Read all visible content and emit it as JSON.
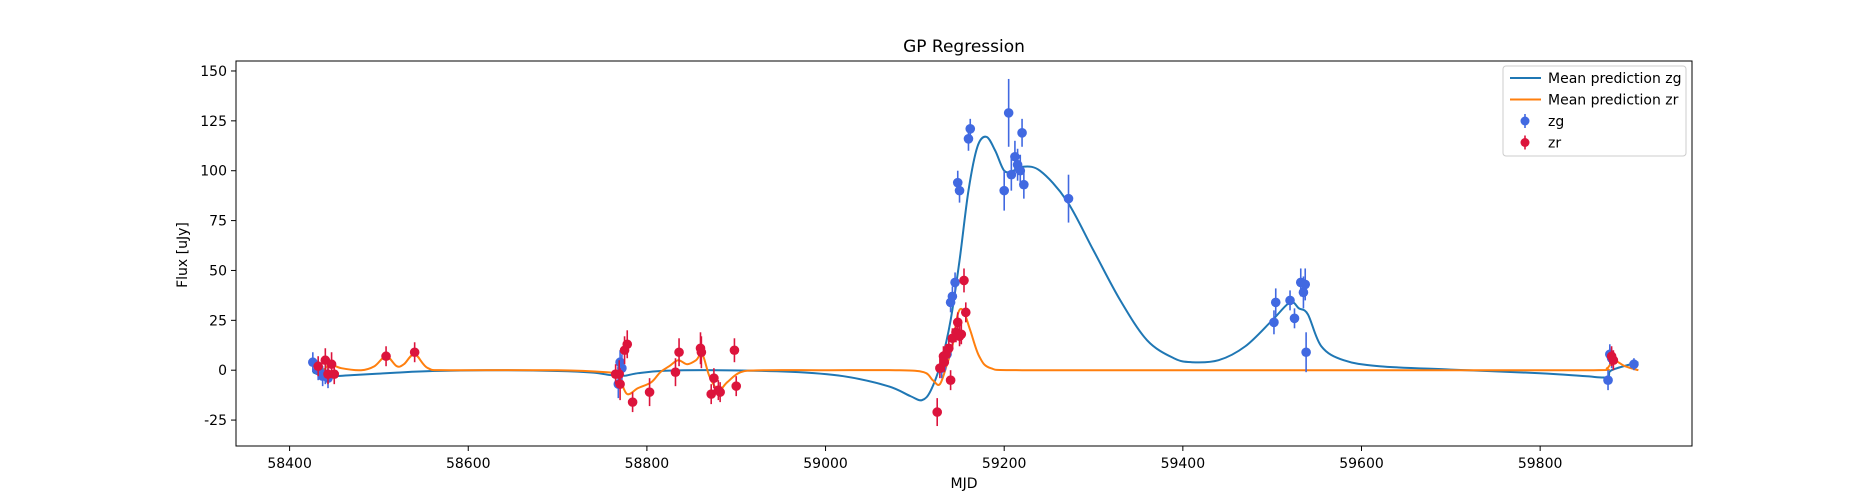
{
  "chart_data": {
    "type": "scatter",
    "title": "GP Regression",
    "xlabel": "MJD",
    "ylabel": "Flux [uJy]",
    "xlim": [
      58340,
      59970
    ],
    "ylim": [
      -38,
      155
    ],
    "xticks": [
      58400,
      58600,
      58800,
      59000,
      59200,
      59400,
      59600,
      59800
    ],
    "yticks": [
      -25,
      0,
      25,
      50,
      75,
      100,
      125,
      150
    ],
    "legend_position": "upper right",
    "colors": {
      "line_zg": "#1f77b4",
      "line_zr": "#ff7f0e",
      "points_zg": "#4169e1",
      "points_zr": "#dc143c"
    },
    "legend": [
      {
        "label": "Mean prediction zg",
        "kind": "line",
        "color": "#1f77b4"
      },
      {
        "label": "Mean prediction zr",
        "kind": "line",
        "color": "#ff7f0e"
      },
      {
        "label": "zg",
        "kind": "errorbar",
        "color": "#4169e1"
      },
      {
        "label": "zr",
        "kind": "errorbar",
        "color": "#dc143c"
      }
    ],
    "lines": [
      {
        "name": "Mean prediction zg",
        "color": "#1f77b4",
        "points": [
          [
            58426,
            -1
          ],
          [
            58440,
            -3
          ],
          [
            58470,
            -2.5
          ],
          [
            58520,
            -1.2
          ],
          [
            58560,
            -0.4
          ],
          [
            58620,
            0
          ],
          [
            58700,
            -0.4
          ],
          [
            58740,
            -1.2
          ],
          [
            58760,
            -2.5
          ],
          [
            58768,
            -2
          ],
          [
            58775,
            -2.8
          ],
          [
            58790,
            -1.5
          ],
          [
            58820,
            -0.3
          ],
          [
            58880,
            0
          ],
          [
            58960,
            -0.8
          ],
          [
            59020,
            -3
          ],
          [
            59070,
            -8
          ],
          [
            59095,
            -13
          ],
          [
            59108,
            -15
          ],
          [
            59118,
            -10
          ],
          [
            59130,
            5
          ],
          [
            59140,
            25
          ],
          [
            59150,
            55
          ],
          [
            59160,
            90
          ],
          [
            59170,
            112
          ],
          [
            59180,
            117
          ],
          [
            59190,
            110
          ],
          [
            59200,
            100
          ],
          [
            59210,
            100
          ],
          [
            59220,
            102
          ],
          [
            59240,
            100
          ],
          [
            59270,
            85
          ],
          [
            59300,
            60
          ],
          [
            59330,
            35
          ],
          [
            59360,
            15
          ],
          [
            59390,
            6
          ],
          [
            59410,
            4
          ],
          [
            59440,
            5
          ],
          [
            59470,
            12
          ],
          [
            59500,
            25
          ],
          [
            59520,
            34
          ],
          [
            59530,
            31
          ],
          [
            59540,
            28
          ],
          [
            59555,
            12
          ],
          [
            59580,
            5
          ],
          [
            59620,
            2
          ],
          [
            59700,
            0.3
          ],
          [
            59800,
            -1.5
          ],
          [
            59850,
            -3
          ],
          [
            59875,
            -3.5
          ],
          [
            59880,
            0
          ],
          [
            59910,
            4
          ]
        ]
      },
      {
        "name": "Mean prediction zr",
        "color": "#ff7f0e",
        "points": [
          [
            58426,
            3
          ],
          [
            58438,
            0.5
          ],
          [
            58445,
            3
          ],
          [
            58458,
            1
          ],
          [
            58480,
            0
          ],
          [
            58495,
            2
          ],
          [
            58508,
            7
          ],
          [
            58520,
            2
          ],
          [
            58528,
            3
          ],
          [
            58540,
            8
          ],
          [
            58555,
            1
          ],
          [
            58580,
            0
          ],
          [
            58700,
            0
          ],
          [
            58755,
            -1
          ],
          [
            58762,
            -2
          ],
          [
            58770,
            -5
          ],
          [
            58778,
            -12
          ],
          [
            58790,
            -9
          ],
          [
            58805,
            -6
          ],
          [
            58815,
            -1
          ],
          [
            58825,
            2
          ],
          [
            58835,
            5
          ],
          [
            58845,
            3
          ],
          [
            58855,
            5
          ],
          [
            58862,
            8
          ],
          [
            58870,
            -3
          ],
          [
            58880,
            -10
          ],
          [
            58890,
            -6
          ],
          [
            58905,
            -1
          ],
          [
            58930,
            0
          ],
          [
            59000,
            0
          ],
          [
            59080,
            0
          ],
          [
            59110,
            -1
          ],
          [
            59120,
            -5
          ],
          [
            59128,
            -7
          ],
          [
            59136,
            3
          ],
          [
            59142,
            12
          ],
          [
            59148,
            28
          ],
          [
            59154,
            30
          ],
          [
            59162,
            20
          ],
          [
            59172,
            7
          ],
          [
            59185,
            1
          ],
          [
            59220,
            0
          ],
          [
            59400,
            0
          ],
          [
            59700,
            0
          ],
          [
            59860,
            0
          ],
          [
            59875,
            1
          ],
          [
            59882,
            5
          ],
          [
            59895,
            2
          ],
          [
            59910,
            0
          ]
        ]
      }
    ],
    "series": [
      {
        "name": "zg",
        "color": "#4169e1",
        "points": [
          [
            58426,
            4,
            5
          ],
          [
            58432,
            0,
            5
          ],
          [
            58437,
            -3,
            5
          ],
          [
            58440,
            -2,
            5
          ],
          [
            58443,
            -4,
            5
          ],
          [
            58768,
            -7,
            7
          ],
          [
            58770,
            4,
            6
          ],
          [
            58772,
            1,
            7
          ],
          [
            59130,
            1,
            5
          ],
          [
            59136,
            8,
            5
          ],
          [
            59140,
            34,
            5
          ],
          [
            59142,
            37,
            5
          ],
          [
            59145,
            44,
            5
          ],
          [
            59148,
            94,
            6
          ],
          [
            59150,
            90,
            6
          ],
          [
            59160,
            116,
            6
          ],
          [
            59162,
            121,
            5
          ],
          [
            59200,
            90,
            10
          ],
          [
            59205,
            129,
            17
          ],
          [
            59208,
            98,
            8
          ],
          [
            59212,
            107,
            8
          ],
          [
            59215,
            103,
            8
          ],
          [
            59218,
            100,
            8
          ],
          [
            59220,
            119,
            7
          ],
          [
            59222,
            93,
            7
          ],
          [
            59272,
            86,
            12
          ],
          [
            59502,
            24,
            6
          ],
          [
            59504,
            34,
            7
          ],
          [
            59520,
            35,
            5
          ],
          [
            59525,
            26,
            5
          ],
          [
            59532,
            44,
            7
          ],
          [
            59535,
            39,
            8
          ],
          [
            59537,
            43,
            8
          ],
          [
            59538,
            9,
            10
          ],
          [
            59876,
            -5,
            5
          ],
          [
            59878,
            8,
            5
          ],
          [
            59880,
            6,
            5
          ],
          [
            59905,
            3,
            3
          ]
        ]
      },
      {
        "name": "zr",
        "color": "#dc143c",
        "points": [
          [
            58432,
            2,
            5
          ],
          [
            58440,
            5,
            6
          ],
          [
            58443,
            -2,
            5
          ],
          [
            58447,
            3,
            6
          ],
          [
            58450,
            -2,
            5
          ],
          [
            58508,
            7,
            5
          ],
          [
            58540,
            9,
            5
          ],
          [
            58765,
            -2,
            5
          ],
          [
            58769,
            -2,
            7
          ],
          [
            58770,
            -7,
            8
          ],
          [
            58775,
            10,
            7
          ],
          [
            58778,
            13,
            7
          ],
          [
            58784,
            -16,
            5
          ],
          [
            58803,
            -11,
            7
          ],
          [
            58832,
            -1,
            7
          ],
          [
            58836,
            9,
            7
          ],
          [
            58860,
            11,
            8
          ],
          [
            58861,
            9,
            8
          ],
          [
            58872,
            -12,
            5
          ],
          [
            58875,
            -4,
            5
          ],
          [
            58880,
            -10,
            5
          ],
          [
            58882,
            -11,
            5
          ],
          [
            58898,
            10,
            6
          ],
          [
            58900,
            -8,
            5
          ],
          [
            59125,
            -21,
            7
          ],
          [
            59128,
            1,
            5
          ],
          [
            59132,
            7,
            5
          ],
          [
            59133,
            4,
            5
          ],
          [
            59135,
            8,
            5
          ],
          [
            59138,
            11,
            5
          ],
          [
            59140,
            -5,
            5
          ],
          [
            59142,
            16,
            5
          ],
          [
            59146,
            19,
            5
          ],
          [
            59148,
            24,
            5
          ],
          [
            59150,
            17,
            5
          ],
          [
            59152,
            18,
            5
          ],
          [
            59155,
            45,
            6
          ],
          [
            59157,
            29,
            5
          ],
          [
            59880,
            7,
            5
          ],
          [
            59882,
            5,
            5
          ]
        ]
      }
    ]
  }
}
